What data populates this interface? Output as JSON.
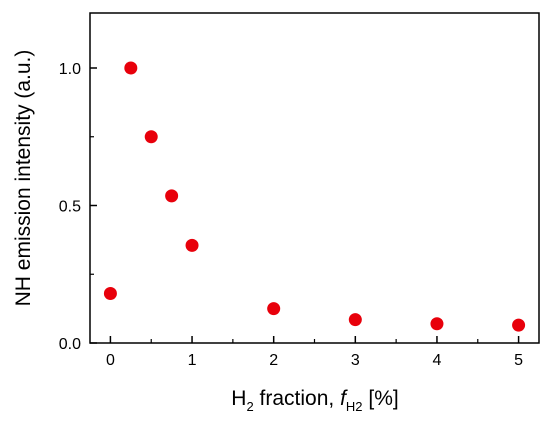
{
  "chart_data": {
    "type": "scatter",
    "title": "",
    "xlabel_parts": {
      "h": "H",
      "h_sub": "2",
      "fraction": " fraction, ",
      "f": "f",
      "f_sub": "H2",
      "unit": " [%]"
    },
    "ylabel": "NH emission intensity (a.u.)",
    "xlim": [
      -0.25,
      5.25
    ],
    "ylim": [
      0.0,
      1.2
    ],
    "x_ticks": [
      0,
      1,
      2,
      3,
      4,
      5
    ],
    "x_tick_labels": [
      "0",
      "1",
      "2",
      "3",
      "4",
      "5"
    ],
    "y_ticks": [
      0.0,
      0.5,
      1.0
    ],
    "y_tick_labels": [
      "0.0",
      "0.5",
      "1.0"
    ],
    "grid": false,
    "marker_color": "#e8000b",
    "points": [
      {
        "x": 0.0,
        "y": 0.18
      },
      {
        "x": 0.25,
        "y": 1.0
      },
      {
        "x": 0.5,
        "y": 0.75
      },
      {
        "x": 0.75,
        "y": 0.535
      },
      {
        "x": 1.0,
        "y": 0.355
      },
      {
        "x": 2.0,
        "y": 0.125
      },
      {
        "x": 3.0,
        "y": 0.085
      },
      {
        "x": 4.0,
        "y": 0.07
      },
      {
        "x": 5.0,
        "y": 0.065
      }
    ]
  }
}
